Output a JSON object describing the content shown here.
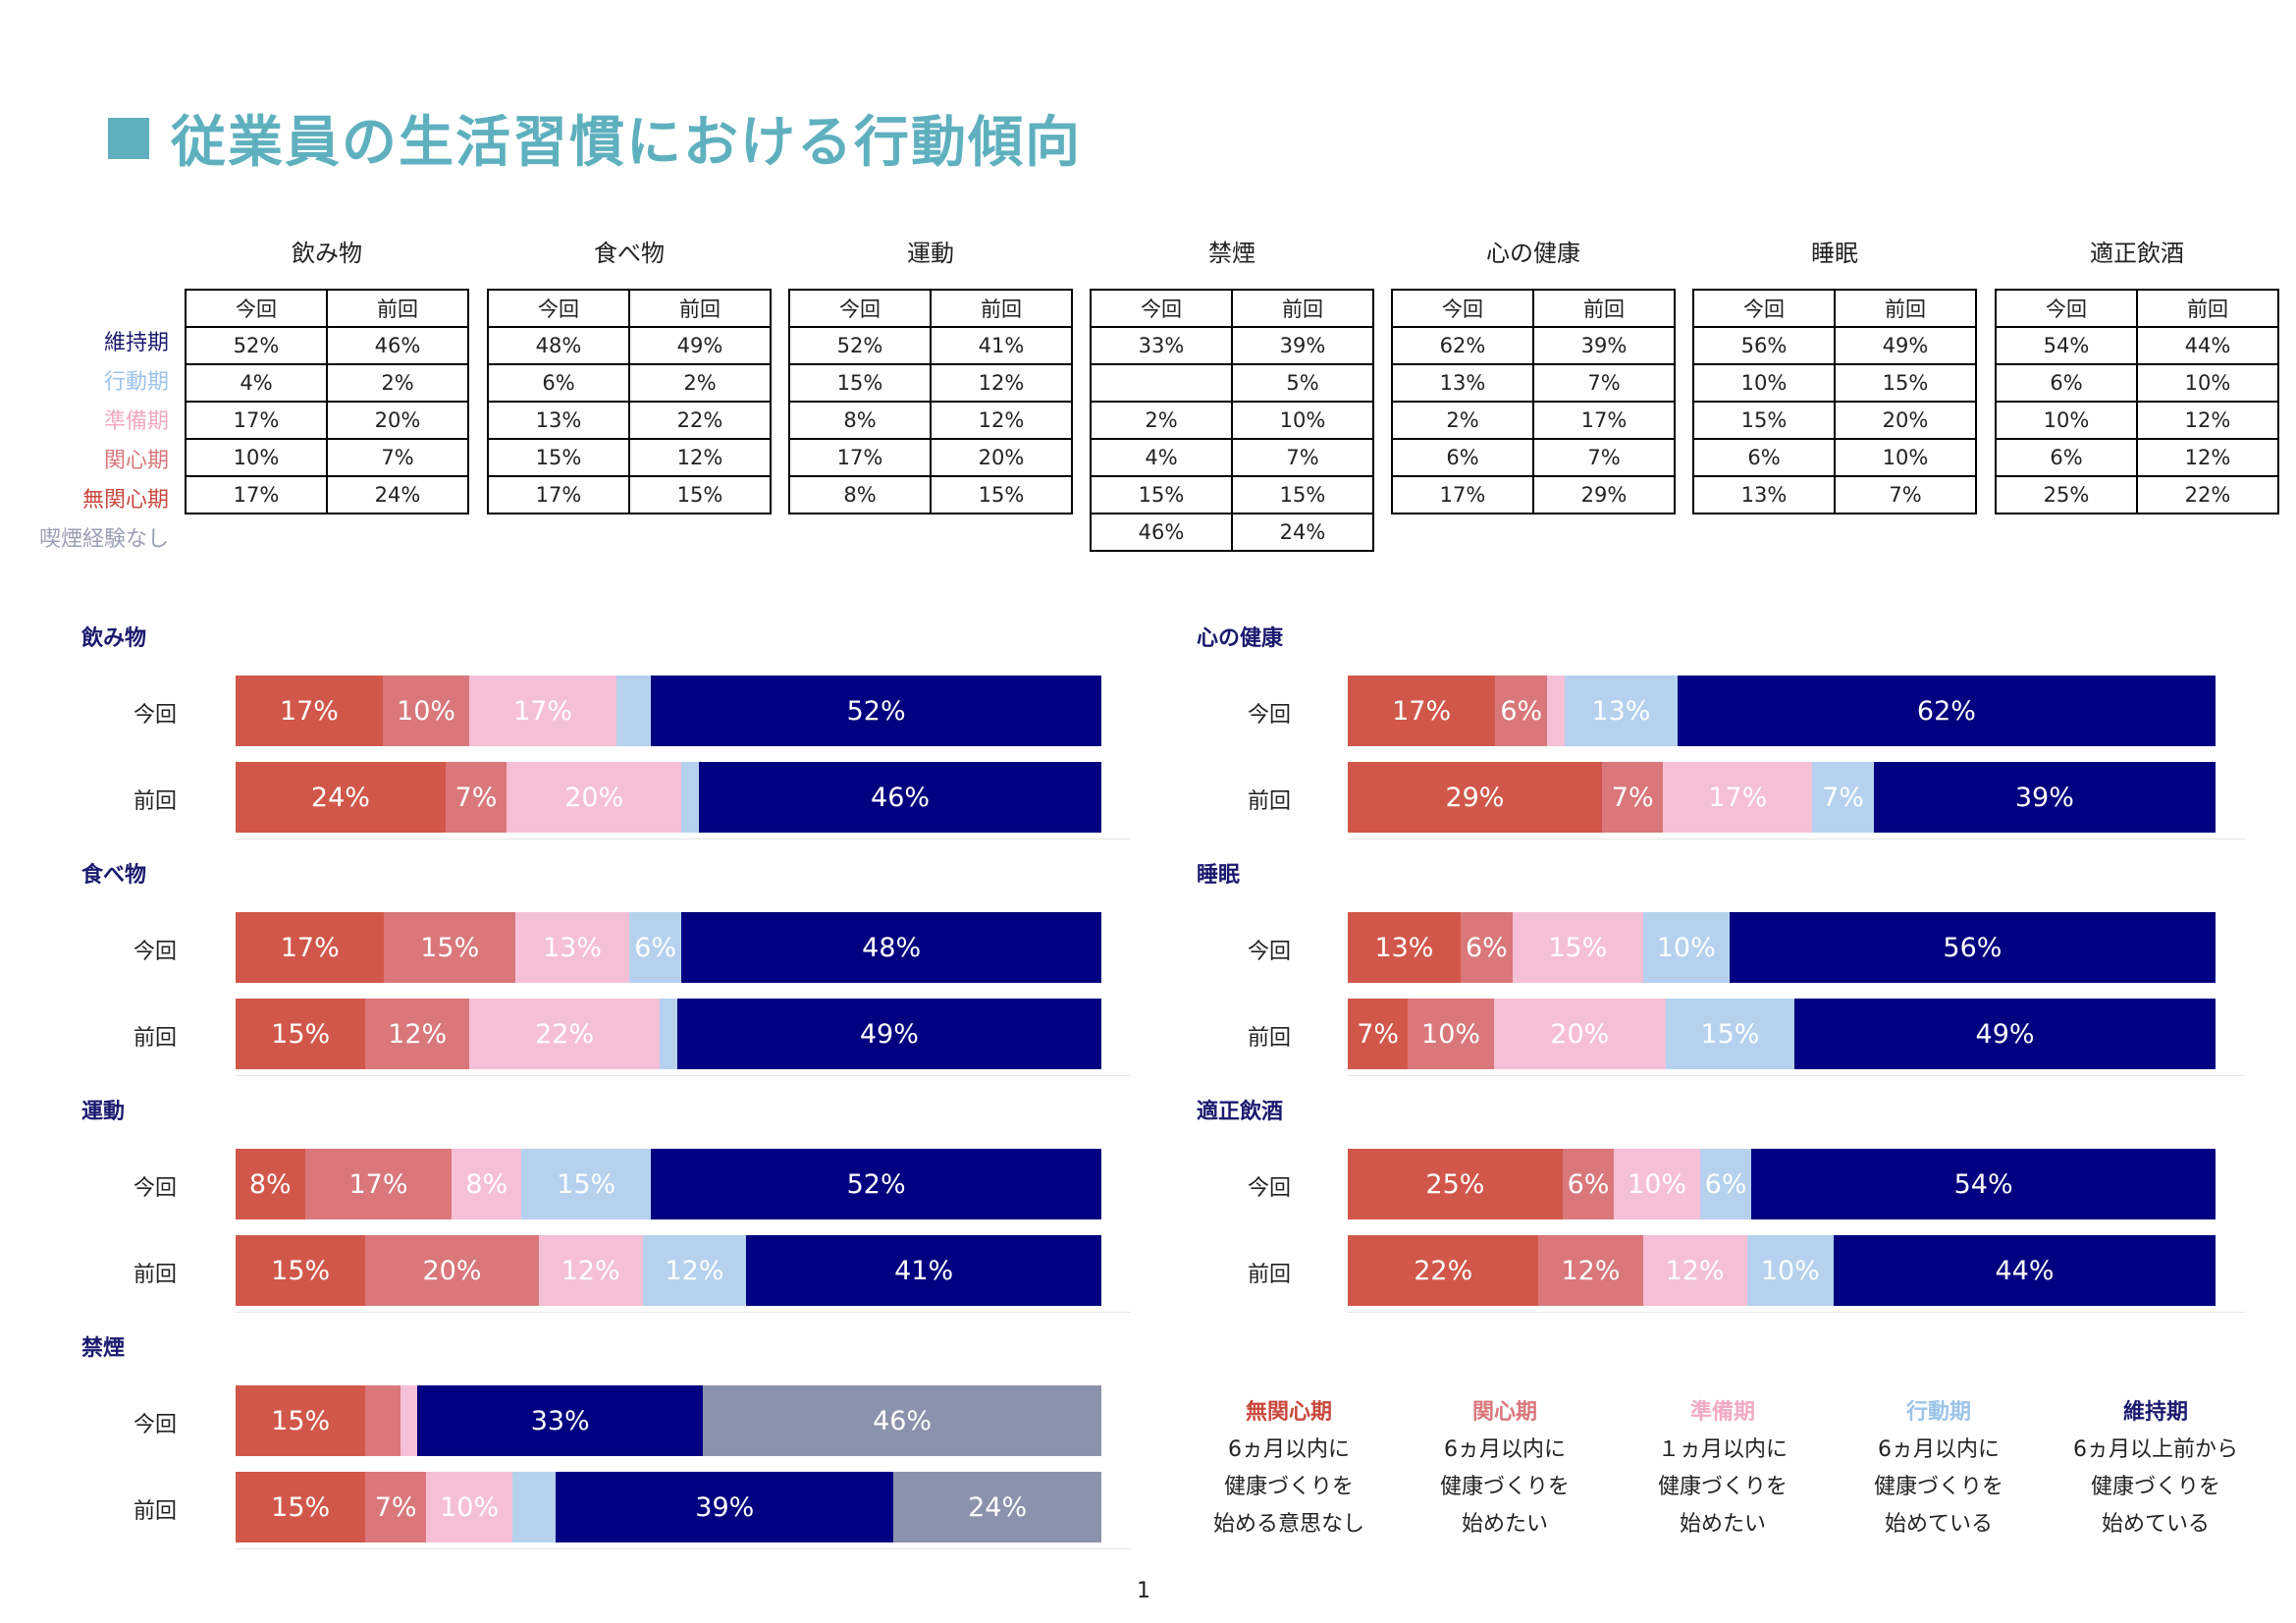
{
  "title": "従業員の生活習慣における行動傾向",
  "page_number": "1",
  "colors": {
    "title": "#5fb0bf",
    "無関心期": "#d1574a",
    "関心期": "#d9777b",
    "準備期": "#f5c0d6",
    "行動期": "#b5d1ee",
    "維持期": "#000080",
    "喫煙経験なし": "#8b93ac",
    "heading": "#1a1a6e"
  },
  "stage_labels": [
    {
      "label": "維持期",
      "color": "#1a1a6e"
    },
    {
      "label": "行動期",
      "color": "#9cc4e8"
    },
    {
      "label": "準備期",
      "color": "#f2a9c4"
    },
    {
      "label": "関心期",
      "color": "#d9777b"
    },
    {
      "label": "無関心期",
      "color": "#c9483d"
    },
    {
      "label": "喫煙経験なし",
      "color": "#9aa0b4"
    }
  ],
  "table_headers": {
    "current": "今回",
    "previous": "前回"
  },
  "tables": [
    {
      "name": "飲み物",
      "rows": [
        [
          "52%",
          "46%"
        ],
        [
          "4%",
          "2%"
        ],
        [
          "17%",
          "20%"
        ],
        [
          "10%",
          "7%"
        ],
        [
          "17%",
          "24%"
        ]
      ]
    },
    {
      "name": "食べ物",
      "rows": [
        [
          "48%",
          "49%"
        ],
        [
          "6%",
          "2%"
        ],
        [
          "13%",
          "22%"
        ],
        [
          "15%",
          "12%"
        ],
        [
          "17%",
          "15%"
        ]
      ]
    },
    {
      "name": "運動",
      "rows": [
        [
          "52%",
          "41%"
        ],
        [
          "15%",
          "12%"
        ],
        [
          "8%",
          "12%"
        ],
        [
          "17%",
          "20%"
        ],
        [
          "8%",
          "15%"
        ]
      ]
    },
    {
      "name": "禁煙",
      "rows": [
        [
          "33%",
          "39%"
        ],
        [
          "",
          "5%"
        ],
        [
          "2%",
          "10%"
        ],
        [
          "4%",
          "7%"
        ],
        [
          "15%",
          "15%"
        ],
        [
          "46%",
          "24%"
        ]
      ]
    },
    {
      "name": "心の健康",
      "rows": [
        [
          "62%",
          "39%"
        ],
        [
          "13%",
          "7%"
        ],
        [
          "2%",
          "17%"
        ],
        [
          "6%",
          "7%"
        ],
        [
          "17%",
          "29%"
        ]
      ]
    },
    {
      "name": "睡眠",
      "rows": [
        [
          "56%",
          "49%"
        ],
        [
          "10%",
          "15%"
        ],
        [
          "15%",
          "20%"
        ],
        [
          "6%",
          "10%"
        ],
        [
          "13%",
          "7%"
        ]
      ]
    },
    {
      "name": "適正飲酒",
      "rows": [
        [
          "54%",
          "44%"
        ],
        [
          "6%",
          "10%"
        ],
        [
          "10%",
          "12%"
        ],
        [
          "6%",
          "12%"
        ],
        [
          "25%",
          "22%"
        ]
      ]
    }
  ],
  "chart_data": [
    {
      "type": "bar",
      "orientation": "horizontal",
      "stacked": true,
      "title": "飲み物",
      "categories": [
        "今回",
        "前回"
      ],
      "series": [
        {
          "name": "無関心期",
          "values": [
            17,
            24
          ],
          "labels": [
            "17%",
            "24%"
          ]
        },
        {
          "name": "関心期",
          "values": [
            10,
            7
          ],
          "labels": [
            "10%",
            "7%"
          ]
        },
        {
          "name": "準備期",
          "values": [
            17,
            20
          ],
          "labels": [
            "17%",
            "20%"
          ]
        },
        {
          "name": "行動期",
          "values": [
            4,
            2
          ],
          "labels": [
            "",
            ""
          ]
        },
        {
          "name": "維持期",
          "values": [
            52,
            46
          ],
          "labels": [
            "52%",
            "46%"
          ]
        }
      ]
    },
    {
      "type": "bar",
      "orientation": "horizontal",
      "stacked": true,
      "title": "食べ物",
      "categories": [
        "今回",
        "前回"
      ],
      "series": [
        {
          "name": "無関心期",
          "values": [
            17,
            15
          ],
          "labels": [
            "17%",
            "15%"
          ]
        },
        {
          "name": "関心期",
          "values": [
            15,
            12
          ],
          "labels": [
            "15%",
            "12%"
          ]
        },
        {
          "name": "準備期",
          "values": [
            13,
            22
          ],
          "labels": [
            "13%",
            "22%"
          ]
        },
        {
          "name": "行動期",
          "values": [
            6,
            2
          ],
          "labels": [
            "6%",
            ""
          ]
        },
        {
          "name": "維持期",
          "values": [
            48,
            49
          ],
          "labels": [
            "48%",
            "49%"
          ]
        }
      ]
    },
    {
      "type": "bar",
      "orientation": "horizontal",
      "stacked": true,
      "title": "運動",
      "categories": [
        "今回",
        "前回"
      ],
      "series": [
        {
          "name": "無関心期",
          "values": [
            8,
            15
          ],
          "labels": [
            "8%",
            "15%"
          ]
        },
        {
          "name": "関心期",
          "values": [
            17,
            20
          ],
          "labels": [
            "17%",
            "20%"
          ]
        },
        {
          "name": "準備期",
          "values": [
            8,
            12
          ],
          "labels": [
            "8%",
            "12%"
          ]
        },
        {
          "name": "行動期",
          "values": [
            15,
            12
          ],
          "labels": [
            "15%",
            "12%"
          ]
        },
        {
          "name": "維持期",
          "values": [
            52,
            41
          ],
          "labels": [
            "52%",
            "41%"
          ]
        }
      ]
    },
    {
      "type": "bar",
      "orientation": "horizontal",
      "stacked": true,
      "title": "禁煙",
      "categories": [
        "今回",
        "前回"
      ],
      "series": [
        {
          "name": "無関心期",
          "values": [
            15,
            15
          ],
          "labels": [
            "15%",
            "15%"
          ]
        },
        {
          "name": "関心期",
          "values": [
            4,
            7
          ],
          "labels": [
            "",
            "7%"
          ]
        },
        {
          "name": "準備期",
          "values": [
            2,
            10
          ],
          "labels": [
            "",
            "10%"
          ]
        },
        {
          "name": "行動期",
          "values": [
            0,
            5
          ],
          "labels": [
            "",
            ""
          ]
        },
        {
          "name": "維持期",
          "values": [
            33,
            39
          ],
          "labels": [
            "33%",
            "39%"
          ]
        },
        {
          "name": "喫煙経験なし",
          "values": [
            46,
            24
          ],
          "labels": [
            "46%",
            "24%"
          ]
        }
      ]
    },
    {
      "type": "bar",
      "orientation": "horizontal",
      "stacked": true,
      "title": "心の健康",
      "categories": [
        "今回",
        "前回"
      ],
      "series": [
        {
          "name": "無関心期",
          "values": [
            17,
            29
          ],
          "labels": [
            "17%",
            "29%"
          ]
        },
        {
          "name": "関心期",
          "values": [
            6,
            7
          ],
          "labels": [
            "6%",
            "7%"
          ]
        },
        {
          "name": "準備期",
          "values": [
            2,
            17
          ],
          "labels": [
            "",
            "17%"
          ]
        },
        {
          "name": "行動期",
          "values": [
            13,
            7
          ],
          "labels": [
            "13%",
            "7%"
          ]
        },
        {
          "name": "維持期",
          "values": [
            62,
            39
          ],
          "labels": [
            "62%",
            "39%"
          ]
        }
      ]
    },
    {
      "type": "bar",
      "orientation": "horizontal",
      "stacked": true,
      "title": "睡眠",
      "categories": [
        "今回",
        "前回"
      ],
      "series": [
        {
          "name": "無関心期",
          "values": [
            13,
            7
          ],
          "labels": [
            "13%",
            "7%"
          ]
        },
        {
          "name": "関心期",
          "values": [
            6,
            10
          ],
          "labels": [
            "6%",
            "10%"
          ]
        },
        {
          "name": "準備期",
          "values": [
            15,
            20
          ],
          "labels": [
            "15%",
            "20%"
          ]
        },
        {
          "name": "行動期",
          "values": [
            10,
            15
          ],
          "labels": [
            "10%",
            "15%"
          ]
        },
        {
          "name": "維持期",
          "values": [
            56,
            49
          ],
          "labels": [
            "56%",
            "49%"
          ]
        }
      ]
    },
    {
      "type": "bar",
      "orientation": "horizontal",
      "stacked": true,
      "title": "適正飲酒",
      "categories": [
        "今回",
        "前回"
      ],
      "series": [
        {
          "name": "無関心期",
          "values": [
            25,
            22
          ],
          "labels": [
            "25%",
            "22%"
          ]
        },
        {
          "name": "関心期",
          "values": [
            6,
            12
          ],
          "labels": [
            "6%",
            "12%"
          ]
        },
        {
          "name": "準備期",
          "values": [
            10,
            12
          ],
          "labels": [
            "10%",
            "12%"
          ]
        },
        {
          "name": "行動期",
          "values": [
            6,
            10
          ],
          "labels": [
            "6%",
            "10%"
          ]
        },
        {
          "name": "維持期",
          "values": [
            54,
            44
          ],
          "labels": [
            "54%",
            "44%"
          ]
        }
      ]
    }
  ],
  "legend": [
    {
      "name": "無関心期",
      "lines": [
        "6ヵ月以内に",
        "健康づくりを",
        "始める意思なし"
      ],
      "color": "#c9483d"
    },
    {
      "name": "関心期",
      "lines": [
        "6ヵ月以内に",
        "健康づくりを",
        "始めたい"
      ],
      "color": "#d9777b"
    },
    {
      "name": "準備期",
      "lines": [
        "１ヵ月以内に",
        "健康づくりを",
        "始めたい"
      ],
      "color": "#f2a9c4"
    },
    {
      "name": "行動期",
      "lines": [
        "6ヵ月以内に",
        "健康づくりを",
        "始めている"
      ],
      "color": "#9cc4e8"
    },
    {
      "name": "維持期",
      "lines": [
        "6ヵ月以上前から",
        "健康づくりを",
        "始めている"
      ],
      "color": "#1a1a6e"
    }
  ]
}
